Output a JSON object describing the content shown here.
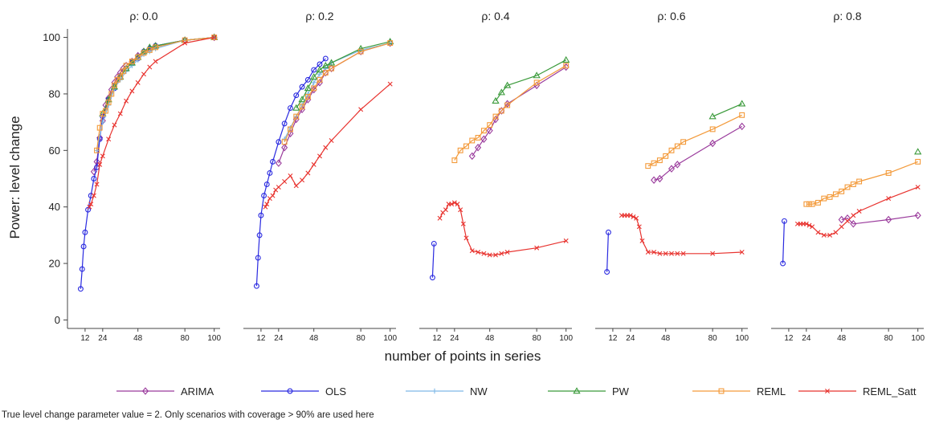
{
  "chart_data": {
    "type": "line",
    "panels": [
      {
        "title": "ρ: 0.0",
        "series": [
          {
            "name": "ARIMA",
            "x": [
              18,
              20,
              22,
              24,
              26,
              28,
              30,
              32,
              34,
              36,
              38,
              40,
              44,
              48,
              52,
              56,
              60,
              80,
              100
            ],
            "y": [
              52.5,
              56,
              64.5,
              70.5,
              76,
              78.5,
              81.5,
              84,
              86,
              87.5,
              89,
              90,
              91.5,
              93.5,
              95,
              96,
              97,
              99,
              100
            ]
          },
          {
            "name": "OLS",
            "x": [
              9,
              10,
              11,
              12,
              14,
              16,
              18,
              20,
              22,
              24,
              28,
              32,
              36,
              40,
              44,
              48,
              52,
              56,
              60,
              80,
              100
            ],
            "y": [
              11,
              18,
              26,
              31,
              39,
              44,
              50,
              54,
              64,
              72,
              78,
              82,
              86,
              89,
              91,
              92.5,
              95,
              96,
              97,
              99,
              100
            ]
          },
          {
            "name": "NW",
            "x": [
              20,
              24,
              28,
              32,
              36,
              40,
              44,
              48,
              52,
              56,
              60,
              80,
              100
            ],
            "y": [
              60,
              70,
              76,
              82,
              85,
              88,
              90,
              92,
              94,
              95,
              96,
              99,
              100
            ]
          },
          {
            "name": "PW",
            "x": [
              24,
              28,
              32,
              36,
              40,
              44,
              48,
              52,
              56,
              60,
              80,
              100
            ],
            "y": [
              73,
              78,
              82.5,
              86,
              89,
              91,
              93,
              95,
              96.5,
              97,
              99,
              100
            ]
          },
          {
            "name": "REML",
            "x": [
              20,
              22,
              24,
              26,
              28,
              30,
              32,
              34,
              36,
              38,
              40,
              44,
              48,
              52,
              56,
              60,
              80,
              100
            ],
            "y": [
              60,
              68,
              73,
              74,
              77,
              80,
              83,
              85,
              86,
              88,
              90,
              91.5,
              93,
              94.5,
              95.5,
              96.5,
              99,
              100
            ]
          },
          {
            "name": "REML_Satt",
            "x": [
              15,
              16,
              18,
              20,
              22,
              24,
              28,
              32,
              36,
              40,
              44,
              48,
              52,
              56,
              60,
              80,
              100
            ],
            "y": [
              40,
              41,
              44,
              48,
              55,
              58,
              64,
              69,
              73,
              77.5,
              81,
              84,
              87,
              89.5,
              91.5,
              98,
              100
            ]
          }
        ]
      },
      {
        "title": "ρ: 0.2",
        "series": [
          {
            "name": "ARIMA",
            "x": [
              24,
              28,
              32,
              36,
              40,
              44,
              48,
              52,
              56,
              60,
              80,
              100
            ],
            "y": [
              55.5,
              61,
              66,
              71,
              74.5,
              78,
              81.5,
              84,
              87.5,
              89,
              95,
              98
            ]
          },
          {
            "name": "OLS",
            "x": [
              9,
              10,
              11,
              12,
              14,
              16,
              18,
              20,
              24,
              28,
              32,
              36,
              40,
              44,
              48,
              52,
              56
            ],
            "y": [
              12,
              22,
              30,
              37,
              44,
              48,
              52,
              56,
              63,
              69.5,
              75,
              79.5,
              82.5,
              85,
              88.5,
              90.5,
              92.5
            ]
          },
          {
            "name": "NW",
            "x": [
              28,
              32,
              36,
              40,
              44,
              48,
              52,
              56,
              60,
              80,
              100
            ],
            "y": [
              64,
              68,
              72,
              76,
              80,
              84,
              87,
              89,
              91,
              95.5,
              98
            ]
          },
          {
            "name": "PW",
            "x": [
              36,
              40,
              44,
              48,
              52,
              56,
              60,
              80,
              100
            ],
            "y": [
              75,
              78,
              82,
              86,
              88.5,
              90,
              91,
              96,
              98.5
            ]
          },
          {
            "name": "REML",
            "x": [
              28,
              32,
              36,
              40,
              44,
              48,
              52,
              56,
              60,
              80,
              100
            ],
            "y": [
              63,
              67.5,
              72,
              75.5,
              79,
              82,
              85,
              87.5,
              89,
              95,
              98
            ]
          },
          {
            "name": "REML_Satt",
            "x": [
              15,
              16,
              18,
              20,
              22,
              24,
              28,
              32,
              36,
              40,
              44,
              48,
              52,
              56,
              60,
              80,
              100
            ],
            "y": [
              40,
              41,
              43,
              44,
              46,
              47,
              49,
              51,
              47.5,
              49.5,
              52,
              55,
              58,
              61,
              63.5,
              74.5,
              83.5
            ]
          }
        ]
      },
      {
        "title": "ρ: 0.4",
        "series": [
          {
            "name": "ARIMA",
            "x": [
              36,
              40,
              44,
              48,
              52,
              56,
              60,
              80,
              100
            ],
            "y": [
              58,
              61,
              64,
              67,
              71,
              74,
              76.5,
              83,
              89.5
            ]
          },
          {
            "name": "OLS",
            "x": [
              9,
              10
            ],
            "y": [
              15,
              27
            ]
          },
          {
            "name": "NW",
            "x": [],
            "y": []
          },
          {
            "name": "PW",
            "x": [
              52,
              56,
              60,
              80,
              100
            ],
            "y": [
              77.5,
              80.5,
              83,
              86.5,
              92
            ]
          },
          {
            "name": "REML",
            "x": [
              24,
              28,
              32,
              36,
              40,
              44,
              48,
              52,
              56,
              60,
              80,
              100
            ],
            "y": [
              56.5,
              60,
              61.5,
              63.5,
              64.5,
              67,
              69,
              72,
              74,
              76,
              84,
              90
            ]
          },
          {
            "name": "REML_Satt",
            "x": [
              14,
              16,
              18,
              20,
              22,
              24,
              26,
              28,
              30,
              32,
              36,
              40,
              44,
              48,
              52,
              56,
              60,
              80,
              100
            ],
            "y": [
              36,
              38,
              39,
              41,
              41,
              41.5,
              41,
              39,
              34,
              29,
              24.5,
              24,
              23.5,
              23,
              23,
              23.5,
              24,
              25.5,
              28
            ]
          }
        ]
      },
      {
        "title": "ρ: 0.6",
        "series": [
          {
            "name": "ARIMA",
            "x": [
              40,
              44,
              52,
              56,
              80,
              100
            ],
            "y": [
              49.5,
              50,
              53.5,
              55,
              62.5,
              68.5
            ]
          },
          {
            "name": "OLS",
            "x": [
              8,
              9
            ],
            "y": [
              17,
              31
            ]
          },
          {
            "name": "NW",
            "x": [],
            "y": []
          },
          {
            "name": "PW",
            "x": [
              80,
              100
            ],
            "y": [
              72,
              76.5
            ]
          },
          {
            "name": "REML",
            "x": [
              36,
              40,
              44,
              48,
              52,
              56,
              60,
              80,
              100
            ],
            "y": [
              54.5,
              55.5,
              56.5,
              58,
              60,
              61.5,
              63,
              67.5,
              72.5
            ]
          },
          {
            "name": "REML_Satt",
            "x": [
              18,
              20,
              22,
              24,
              26,
              28,
              30,
              32,
              36,
              40,
              44,
              48,
              52,
              56,
              60,
              80,
              100
            ],
            "y": [
              37,
              37,
              37,
              37,
              36.5,
              36,
              33,
              28,
              24,
              24,
              23.5,
              23.5,
              23.5,
              23.5,
              23.5,
              23.5,
              24
            ]
          }
        ]
      },
      {
        "title": "ρ: 0.8",
        "series": [
          {
            "name": "ARIMA",
            "x": [
              48,
              52,
              56,
              80,
              100
            ],
            "y": [
              35.5,
              36,
              34,
              35.5,
              37
            ]
          },
          {
            "name": "OLS",
            "x": [
              8,
              9
            ],
            "y": [
              20,
              35
            ]
          },
          {
            "name": "NW",
            "x": [],
            "y": []
          },
          {
            "name": "PW",
            "x": [
              100
            ],
            "y": [
              59.5
            ]
          },
          {
            "name": "REML",
            "x": [
              24,
              26,
              28,
              32,
              36,
              40,
              44,
              48,
              52,
              56,
              60,
              80,
              100
            ],
            "y": [
              41,
              41,
              41,
              41.5,
              43,
              43.5,
              44.5,
              45.5,
              47,
              48,
              49,
              52,
              56
            ]
          },
          {
            "name": "REML_Satt",
            "x": [
              18,
              20,
              22,
              24,
              26,
              28,
              32,
              36,
              40,
              44,
              48,
              52,
              56,
              60,
              80,
              100
            ],
            "y": [
              34,
              34,
              34,
              34,
              33.5,
              33,
              31,
              30,
              30,
              31,
              33,
              35,
              37,
              38.5,
              43,
              47
            ]
          }
        ]
      }
    ],
    "series_colors": {
      "ARIMA": "#9a3b9c",
      "OLS": "#2a2ae0",
      "NW": "#7fb8e6",
      "PW": "#3a9a3a",
      "REML": "#f39a3a",
      "REML_Satt": "#e8332f"
    },
    "series_markers": {
      "ARIMA": "diamond",
      "OLS": "circle",
      "NW": "plus",
      "PW": "triangle",
      "REML": "square",
      "REML_Satt": "x"
    },
    "x_ticks": [
      12,
      24,
      48,
      80,
      100
    ],
    "x_tick_labels": [
      "12",
      "24",
      "48",
      "80",
      "100"
    ],
    "xlim": [
      0,
      104
    ],
    "y_ticks": [
      0,
      20,
      40,
      60,
      80,
      100
    ],
    "y_tick_labels": [
      "0",
      "20",
      "40",
      "60",
      "80",
      "100"
    ],
    "ylim": [
      -3,
      103
    ],
    "xlabel": "number of points in series",
    "ylabel": "Power: level change",
    "legend_entries": [
      "ARIMA",
      "OLS",
      "NW",
      "PW",
      "REML",
      "REML_Satt"
    ],
    "legend_position": "bottom",
    "grid": false,
    "footnote": "True level change parameter value = 2. Only scenarios with coverage > 90% are used here"
  }
}
